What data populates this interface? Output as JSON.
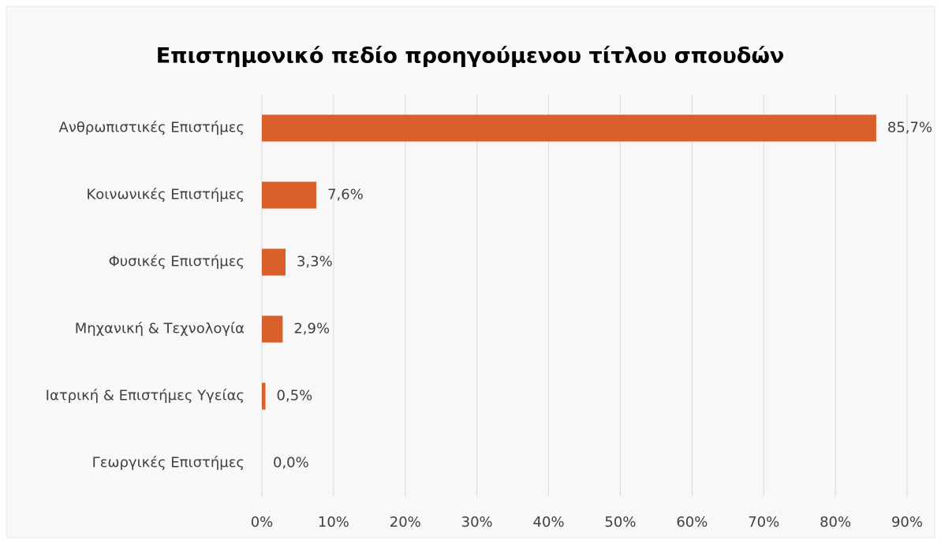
{
  "chart_data": {
    "type": "bar",
    "orientation": "horizontal",
    "title": "Επιστημονικό πεδίο προηγούμενου τίτλου σπουδών",
    "categories": [
      "Ανθρωπιστικές Επιστήμες",
      "Κοινωνικές Επιστήμες",
      "Φυσικές Επιστήμες",
      "Μηχανική & Τεχνολογία",
      "Ιατρική & Επιστήμες Υγείας",
      "Γεωργικές Επιστήμες"
    ],
    "values": [
      85.7,
      7.6,
      3.3,
      2.9,
      0.5,
      0.0
    ],
    "value_labels": [
      "85,7%",
      "7,6%",
      "3,3%",
      "2,9%",
      "0,5%",
      "0,0%"
    ],
    "color": "#d95f2b",
    "xlim": [
      0,
      90
    ],
    "xticks": [
      {
        "value": 0,
        "label": "0%"
      },
      {
        "value": 10,
        "label": "10%"
      },
      {
        "value": 20,
        "label": "20%"
      },
      {
        "value": 30,
        "label": "30%"
      },
      {
        "value": 40,
        "label": "40%"
      },
      {
        "value": 50,
        "label": "50%"
      },
      {
        "value": 60,
        "label": "60%"
      },
      {
        "value": 70,
        "label": "70%"
      },
      {
        "value": 80,
        "label": "80%"
      },
      {
        "value": 90,
        "label": "90%"
      }
    ],
    "grid": true
  }
}
